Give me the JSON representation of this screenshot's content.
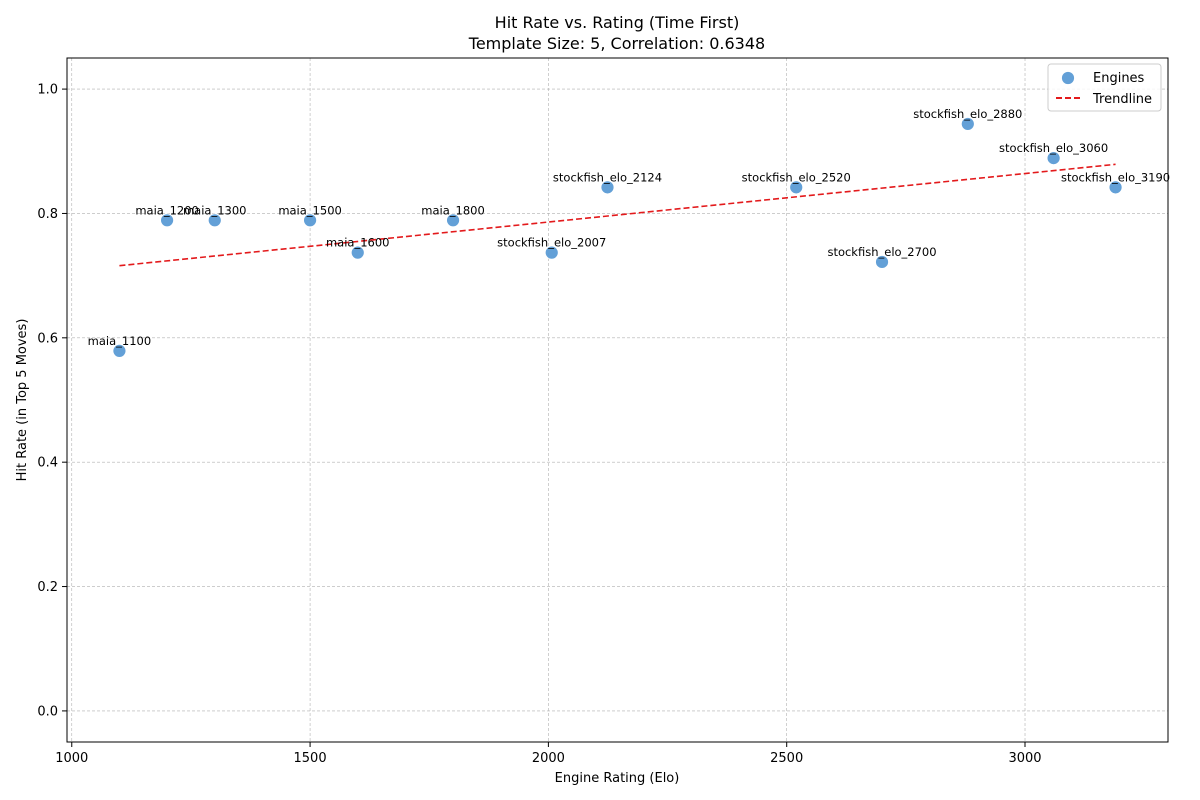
{
  "chart_data": {
    "type": "scatter",
    "title": "Hit Rate vs. Rating (Time First)",
    "subtitle": "Template Size: 5, Correlation: 0.6348",
    "xlabel": "Engine Rating (Elo)",
    "ylabel": "Hit Rate (in Top 5 Moves)",
    "xlim": [
      990,
      3300
    ],
    "ylim": [
      -0.05,
      1.05
    ],
    "xticks": [
      1000,
      1500,
      2000,
      2500,
      3000
    ],
    "yticks": [
      0.0,
      0.2,
      0.4,
      0.6,
      0.8,
      1.0
    ],
    "xtick_labels": [
      "1000",
      "1500",
      "2000",
      "2500",
      "3000"
    ],
    "ytick_labels": [
      "0.0",
      "0.2",
      "0.4",
      "0.6",
      "0.8",
      "1.0"
    ],
    "grid": true,
    "legend_position": "top-right",
    "series": [
      {
        "name": "Engines",
        "color": "#5b9bd5",
        "points": [
          {
            "label": "maia_1100",
            "x": 1100,
            "y": 0.579
          },
          {
            "label": "maia_1200",
            "x": 1200,
            "y": 0.789
          },
          {
            "label": "maia_1300",
            "x": 1300,
            "y": 0.789
          },
          {
            "label": "maia_1500",
            "x": 1500,
            "y": 0.789
          },
          {
            "label": "maia_1600",
            "x": 1600,
            "y": 0.737
          },
          {
            "label": "maia_1800",
            "x": 1800,
            "y": 0.789
          },
          {
            "label": "stockfish_elo_2007",
            "x": 2007,
            "y": 0.737
          },
          {
            "label": "stockfish_elo_2124",
            "x": 2124,
            "y": 0.842
          },
          {
            "label": "stockfish_elo_2520",
            "x": 2520,
            "y": 0.842
          },
          {
            "label": "stockfish_elo_2700",
            "x": 2700,
            "y": 0.722
          },
          {
            "label": "stockfish_elo_2880",
            "x": 2880,
            "y": 0.944
          },
          {
            "label": "stockfish_elo_3060",
            "x": 3060,
            "y": 0.889
          },
          {
            "label": "stockfish_elo_3190",
            "x": 3190,
            "y": 0.842
          }
        ]
      },
      {
        "name": "Trendline",
        "color": "#e31a1c",
        "style": "dashed",
        "line": {
          "x": [
            1100,
            3190
          ],
          "y": [
            0.716,
            0.879
          ]
        }
      }
    ]
  }
}
